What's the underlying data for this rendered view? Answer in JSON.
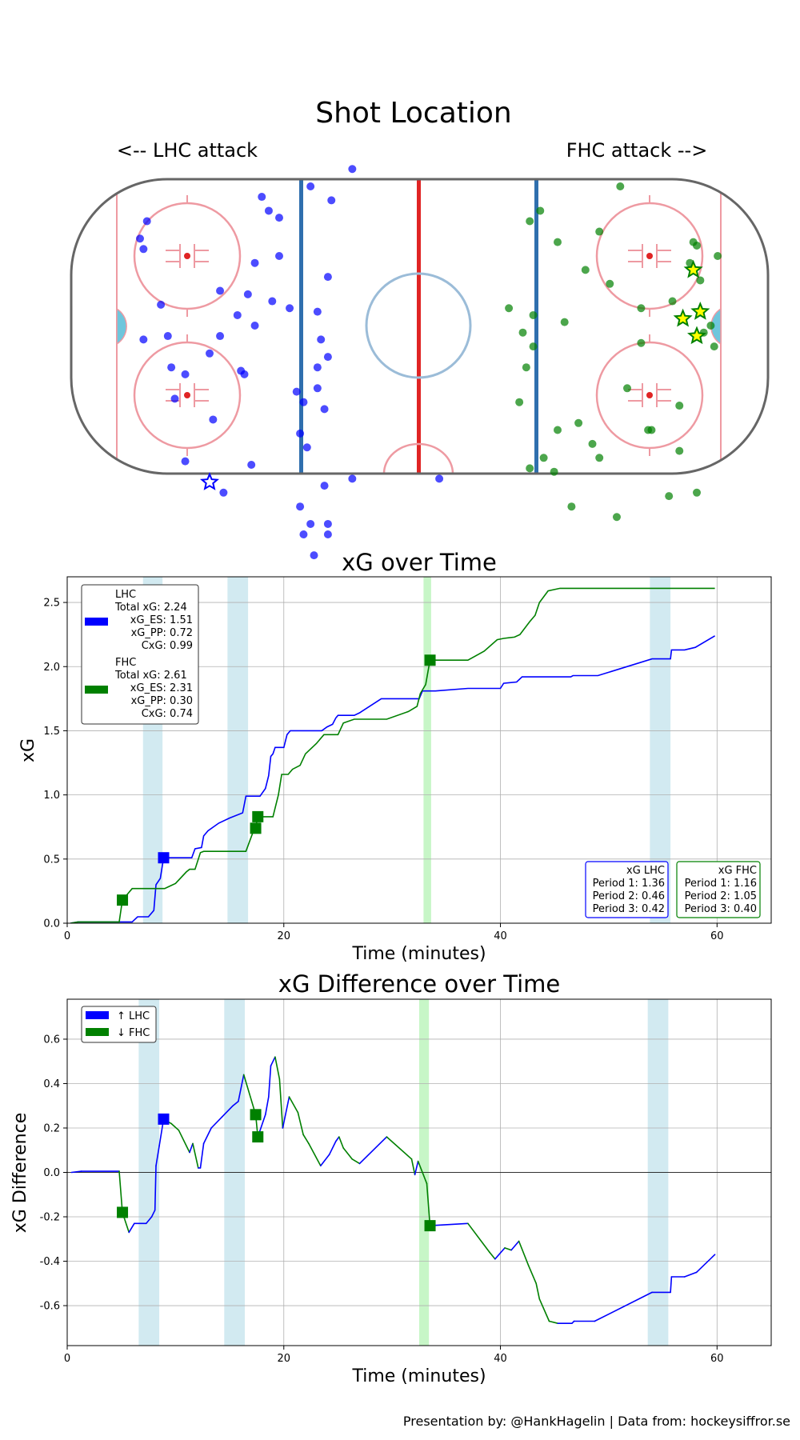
{
  "colors": {
    "lhc": "#0000ff",
    "fhc": "#008000",
    "pp_band": "#add8e6",
    "pp_band_fhc": "#90ee90",
    "rink_red": "#e8505b",
    "rink_blue": "#1f5fa8",
    "crease": "#5bc0de"
  },
  "shot_map": {
    "title": "Shot Location",
    "left_label": "<-- LHC attack",
    "right_label": "FHC attack -->",
    "lhc_shots": [
      [
        -78,
        30
      ],
      [
        -80,
        25
      ],
      [
        -79,
        22
      ],
      [
        -74,
        6
      ],
      [
        -79,
        -4
      ],
      [
        -72,
        -3
      ],
      [
        -71,
        -12
      ],
      [
        -67,
        -14
      ],
      [
        -70,
        -21
      ],
      [
        -59,
        -27
      ],
      [
        -67,
        -39
      ],
      [
        -56,
        -48
      ],
      [
        -60,
        -8
      ],
      [
        -57,
        10
      ],
      [
        -57,
        -3
      ],
      [
        -51,
        -13
      ],
      [
        -50,
        -14
      ],
      [
        -52,
        3
      ],
      [
        -49,
        9
      ],
      [
        -48,
        -40
      ],
      [
        -47,
        0
      ],
      [
        -47,
        18
      ],
      [
        -45,
        37
      ],
      [
        -43,
        33
      ],
      [
        -42,
        7
      ],
      [
        -40,
        20
      ],
      [
        -40,
        31
      ],
      [
        -37,
        5
      ],
      [
        -34,
        -31
      ],
      [
        -32,
        -35
      ],
      [
        -33,
        -22
      ],
      [
        -35,
        -19
      ],
      [
        -34,
        -52
      ],
      [
        -33,
        -60
      ],
      [
        -31,
        -57
      ],
      [
        -27,
        -46
      ],
      [
        -27,
        -24
      ],
      [
        -29,
        -12
      ],
      [
        -28,
        -4
      ],
      [
        -26,
        -9
      ],
      [
        -26,
        -60
      ],
      [
        -26,
        -57
      ],
      [
        -29,
        -18
      ],
      [
        -31,
        40
      ],
      [
        -25,
        36
      ],
      [
        -29,
        4
      ],
      [
        -26,
        14
      ],
      [
        -19,
        45
      ],
      [
        -19,
        -44
      ],
      [
        6,
        -44
      ],
      [
        -30,
        -66
      ]
    ],
    "fhc_shots": [
      [
        26,
        5
      ],
      [
        29,
        -22
      ],
      [
        30,
        -2
      ],
      [
        31,
        -12
      ],
      [
        32,
        30
      ],
      [
        32,
        -41
      ],
      [
        33,
        3
      ],
      [
        33,
        -6
      ],
      [
        35,
        33
      ],
      [
        36,
        -38
      ],
      [
        39,
        -42
      ],
      [
        40,
        -30
      ],
      [
        40,
        24
      ],
      [
        42,
        1
      ],
      [
        44,
        -52
      ],
      [
        46,
        -28
      ],
      [
        48,
        16
      ],
      [
        50,
        -34
      ],
      [
        52,
        27
      ],
      [
        52,
        -38
      ],
      [
        55,
        12
      ],
      [
        57,
        -55
      ],
      [
        58,
        40
      ],
      [
        60,
        -18
      ],
      [
        64,
        -5
      ],
      [
        64,
        5
      ],
      [
        66,
        -30
      ],
      [
        67,
        -30
      ],
      [
        72,
        -49
      ],
      [
        73,
        7
      ],
      [
        75,
        -23
      ],
      [
        75,
        -36
      ],
      [
        78,
        18
      ],
      [
        79,
        24
      ],
      [
        80,
        23
      ],
      [
        80,
        -48
      ],
      [
        81,
        13
      ],
      [
        82,
        -2
      ],
      [
        84,
        0
      ],
      [
        85,
        -6
      ],
      [
        86,
        20
      ]
    ],
    "lhc_goals": [
      [
        -60,
        -45
      ]
    ],
    "fhc_goals": [
      [
        76,
        2
      ],
      [
        79,
        16
      ],
      [
        80,
        -3
      ],
      [
        81,
        4
      ]
    ]
  },
  "chart_data": [
    {
      "type": "line",
      "title": "xG over Time",
      "xlabel": "Time (minutes)",
      "ylabel": "xG",
      "xlim": [
        0,
        65
      ],
      "ylim": [
        0,
        2.7
      ],
      "xticks": [
        0,
        20,
        40,
        60
      ],
      "yticks": [
        0.0,
        0.5,
        1.0,
        1.5,
        2.0,
        2.5
      ],
      "grid": true,
      "pp_bands": [
        {
          "start": 7.0,
          "end": 8.8,
          "team": "LHC"
        },
        {
          "start": 14.8,
          "end": 16.7,
          "team": "LHC"
        },
        {
          "start": 32.9,
          "end": 33.6,
          "team": "FHC"
        },
        {
          "start": 53.8,
          "end": 55.7,
          "team": "LHC"
        }
      ],
      "series": [
        {
          "name": "LHC",
          "color": "#0000ff",
          "points": [
            [
              0.3,
              0
            ],
            [
              1,
              0.01
            ],
            [
              5,
              0.01
            ],
            [
              6,
              0.01
            ],
            [
              6.5,
              0.05
            ],
            [
              7.5,
              0.05
            ],
            [
              8,
              0.1
            ],
            [
              8.2,
              0.3
            ],
            [
              8.6,
              0.35
            ],
            [
              8.9,
              0.51
            ],
            [
              9,
              0.51
            ],
            [
              11.5,
              0.51
            ],
            [
              11.8,
              0.58
            ],
            [
              12.4,
              0.59
            ],
            [
              12.6,
              0.68
            ],
            [
              13,
              0.72
            ],
            [
              14,
              0.78
            ],
            [
              15,
              0.82
            ],
            [
              16.2,
              0.86
            ],
            [
              16.5,
              0.99
            ],
            [
              17.8,
              0.99
            ],
            [
              18.3,
              1.05
            ],
            [
              18.6,
              1.15
            ],
            [
              18.8,
              1.3
            ],
            [
              19,
              1.32
            ],
            [
              19.2,
              1.37
            ],
            [
              20,
              1.37
            ],
            [
              20.3,
              1.47
            ],
            [
              20.6,
              1.5
            ],
            [
              23.5,
              1.5
            ],
            [
              24,
              1.53
            ],
            [
              24.5,
              1.55
            ],
            [
              24.8,
              1.6
            ],
            [
              25,
              1.62
            ],
            [
              26.5,
              1.62
            ],
            [
              27,
              1.64
            ],
            [
              29,
              1.75
            ],
            [
              32.5,
              1.75
            ],
            [
              32.8,
              1.81
            ],
            [
              33.5,
              1.81
            ],
            [
              34,
              1.81
            ],
            [
              37,
              1.83
            ],
            [
              40,
              1.83
            ],
            [
              40.3,
              1.87
            ],
            [
              41.5,
              1.88
            ],
            [
              42,
              1.92
            ],
            [
              46.5,
              1.92
            ],
            [
              46.7,
              1.93
            ],
            [
              49,
              1.93
            ],
            [
              54,
              2.06
            ],
            [
              55.7,
              2.06
            ],
            [
              55.8,
              2.13
            ],
            [
              57,
              2.13
            ],
            [
              58,
              2.15
            ],
            [
              59.8,
              2.24
            ]
          ]
        },
        {
          "name": "FHC",
          "color": "#008000",
          "points": [
            [
              0.3,
              0
            ],
            [
              1,
              0.01
            ],
            [
              4.8,
              0.01
            ],
            [
              5.1,
              0.18
            ],
            [
              5.3,
              0.2
            ],
            [
              6,
              0.27
            ],
            [
              8.8,
              0.27
            ],
            [
              9,
              0.27
            ],
            [
              9.5,
              0.29
            ],
            [
              10,
              0.31
            ],
            [
              11,
              0.4
            ],
            [
              11.3,
              0.42
            ],
            [
              11.8,
              0.42
            ],
            [
              12.3,
              0.55
            ],
            [
              12.6,
              0.56
            ],
            [
              16.5,
              0.56
            ],
            [
              17.2,
              0.72
            ],
            [
              17.4,
              0.75
            ],
            [
              17.6,
              0.83
            ],
            [
              18,
              0.83
            ],
            [
              19,
              0.83
            ],
            [
              19.5,
              1.0
            ],
            [
              19.8,
              1.16
            ],
            [
              20.4,
              1.16
            ],
            [
              20.8,
              1.2
            ],
            [
              21.5,
              1.23
            ],
            [
              22,
              1.32
            ],
            [
              23,
              1.4
            ],
            [
              23.7,
              1.47
            ],
            [
              25,
              1.47
            ],
            [
              25.5,
              1.56
            ],
            [
              26.5,
              1.59
            ],
            [
              29.5,
              1.59
            ],
            [
              31.5,
              1.65
            ],
            [
              32.3,
              1.69
            ],
            [
              32.6,
              1.79
            ],
            [
              33.1,
              1.86
            ],
            [
              33.5,
              2.05
            ],
            [
              37,
              2.05
            ],
            [
              38.5,
              2.12
            ],
            [
              39.7,
              2.21
            ],
            [
              40.3,
              2.22
            ],
            [
              41.3,
              2.23
            ],
            [
              41.8,
              2.25
            ],
            [
              42.7,
              2.35
            ],
            [
              43.2,
              2.4
            ],
            [
              43.6,
              2.5
            ],
            [
              44.4,
              2.59
            ],
            [
              45.5,
              2.61
            ],
            [
              59.8,
              2.61
            ]
          ]
        }
      ],
      "goals": {
        "LHC": [
          [
            8.9,
            0.51
          ]
        ],
        "FHC": [
          [
            5.1,
            0.18
          ],
          [
            17.4,
            0.74
          ],
          [
            17.6,
            0.83
          ],
          [
            33.5,
            2.05
          ]
        ]
      },
      "legend": {
        "location": "top-left",
        "entries": [
          {
            "team": "LHC",
            "lines": [
              "LHC",
              "Total xG: 2.24",
              "xG_ES: 1.51",
              "xG_PP: 0.72",
              "CxG: 0.99"
            ]
          },
          {
            "team": "FHC",
            "lines": [
              "FHC",
              "Total xG: 2.61",
              "xG_ES: 2.31",
              "xG_PP: 0.30",
              "CxG: 0.74"
            ]
          }
        ]
      },
      "period_boxes": [
        {
          "team": "LHC",
          "lines": [
            "xG LHC",
            "Period 1: 1.36",
            "Period 2: 0.46",
            "Period 3: 0.42"
          ]
        },
        {
          "team": "FHC",
          "lines": [
            "xG FHC",
            "Period 1: 1.16",
            "Period 2: 1.05",
            "Period 3: 0.40"
          ]
        }
      ]
    },
    {
      "type": "line",
      "title": "xG Difference over Time",
      "xlabel": "Time (minutes)",
      "ylabel": "xG Difference",
      "xlim": [
        0,
        65
      ],
      "ylim": [
        -0.78,
        0.78
      ],
      "xticks": [
        0,
        20,
        40,
        60
      ],
      "yticks": [
        -0.6,
        -0.4,
        -0.2,
        0.0,
        0.2,
        0.4,
        0.6
      ],
      "grid": true,
      "pp_bands": [
        {
          "start": 6.6,
          "end": 8.5,
          "team": "LHC"
        },
        {
          "start": 14.5,
          "end": 16.4,
          "team": "LHC"
        },
        {
          "start": 32.5,
          "end": 33.4,
          "team": "FHC"
        },
        {
          "start": 53.6,
          "end": 55.5,
          "team": "LHC"
        }
      ],
      "points": [
        [
          0.4,
          0
        ],
        [
          1.3,
          0.005
        ],
        [
          4.8,
          0.005
        ],
        [
          5.1,
          -0.18
        ],
        [
          5.7,
          -0.27
        ],
        [
          6.2,
          -0.23
        ],
        [
          7.3,
          -0.23
        ],
        [
          7.8,
          -0.2
        ],
        [
          8.1,
          -0.17
        ],
        [
          8.2,
          0.03
        ],
        [
          8.5,
          0.12
        ],
        [
          8.9,
          0.24
        ],
        [
          9.6,
          0.22
        ],
        [
          10.3,
          0.19
        ],
        [
          11.3,
          0.09
        ],
        [
          11.6,
          0.13
        ],
        [
          12.1,
          0.02
        ],
        [
          12.3,
          0.02
        ],
        [
          12.6,
          0.13
        ],
        [
          13.3,
          0.2
        ],
        [
          14.3,
          0.25
        ],
        [
          15.3,
          0.3
        ],
        [
          15.8,
          0.32
        ],
        [
          16.3,
          0.44
        ],
        [
          17.4,
          0.26
        ],
        [
          17.6,
          0.16
        ],
        [
          18.3,
          0.26
        ],
        [
          18.6,
          0.34
        ],
        [
          18.8,
          0.48
        ],
        [
          19.2,
          0.52
        ],
        [
          19.6,
          0.42
        ],
        [
          19.9,
          0.2
        ],
        [
          20.5,
          0.34
        ],
        [
          21.3,
          0.27
        ],
        [
          21.8,
          0.17
        ],
        [
          22.3,
          0.13
        ],
        [
          23.4,
          0.03
        ],
        [
          24.2,
          0.08
        ],
        [
          24.8,
          0.14
        ],
        [
          25.1,
          0.16
        ],
        [
          25.5,
          0.11
        ],
        [
          26.3,
          0.06
        ],
        [
          27,
          0.04
        ],
        [
          29.5,
          0.16
        ],
        [
          31.8,
          0.06
        ],
        [
          32.1,
          -0.01
        ],
        [
          32.4,
          0.05
        ],
        [
          33.2,
          -0.05
        ],
        [
          33.5,
          -0.24
        ],
        [
          37,
          -0.23
        ],
        [
          39,
          -0.36
        ],
        [
          39.5,
          -0.39
        ],
        [
          40.4,
          -0.34
        ],
        [
          41,
          -0.35
        ],
        [
          41.7,
          -0.31
        ],
        [
          42.6,
          -0.42
        ],
        [
          43.3,
          -0.5
        ],
        [
          43.6,
          -0.57
        ],
        [
          44.5,
          -0.67
        ],
        [
          45.3,
          -0.68
        ],
        [
          46.6,
          -0.68
        ],
        [
          46.8,
          -0.67
        ],
        [
          48.7,
          -0.67
        ],
        [
          54,
          -0.54
        ],
        [
          55.7,
          -0.54
        ],
        [
          55.8,
          -0.47
        ],
        [
          57,
          -0.47
        ],
        [
          58.1,
          -0.45
        ],
        [
          59.8,
          -0.37
        ]
      ],
      "goals": {
        "LHC": [
          [
            8.9,
            0.24
          ]
        ],
        "FHC": [
          [
            5.1,
            -0.18
          ],
          [
            17.4,
            0.26
          ],
          [
            17.6,
            0.16
          ],
          [
            33.5,
            -0.24
          ]
        ]
      },
      "legend": {
        "location": "top-left",
        "entries": [
          {
            "team": "LHC",
            "label": "↑ LHC"
          },
          {
            "team": "FHC",
            "label": "↓ FHC"
          }
        ]
      }
    }
  ],
  "footer": "Presentation by: @HankHagelin | Data from: hockeysiffror.se"
}
